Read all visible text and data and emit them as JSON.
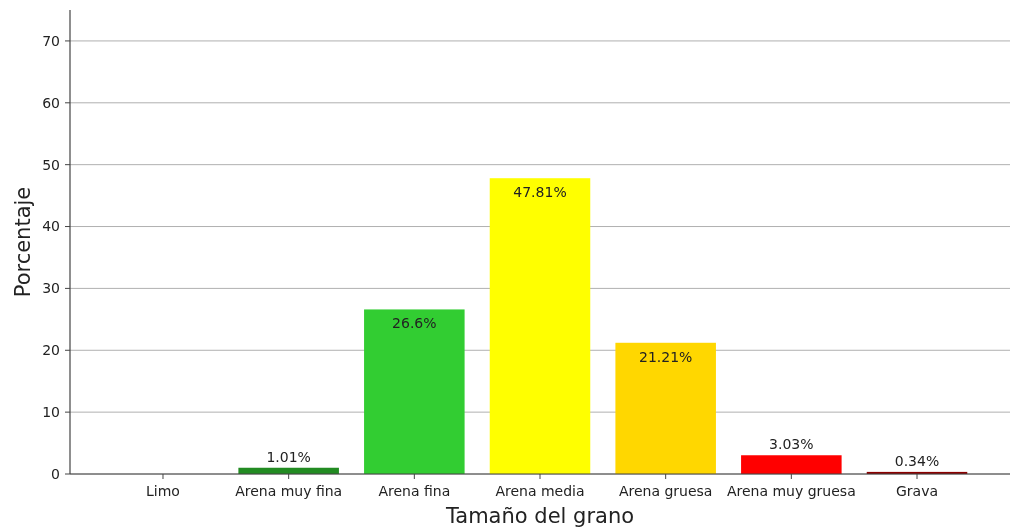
{
  "chart_data": {
    "type": "bar",
    "xlabel": "Tamaño del grano",
    "ylabel": "Porcentaje",
    "categories": [
      "Limo",
      "Arena muy fina",
      "Arena fina",
      "Arena media",
      "Arena gruesa",
      "Arena muy gruesa",
      "Grava"
    ],
    "values": [
      0,
      1.01,
      26.6,
      47.81,
      21.21,
      3.03,
      0.34
    ],
    "colors": [
      "#6a5acd",
      "#228b22",
      "#32cd32",
      "#ffff00",
      "#ffd700",
      "#ff0000",
      "#8b0000"
    ],
    "value_labels": [
      null,
      "1.01%",
      "26.6%",
      "47.81%",
      "21.21%",
      "3.03%",
      "0.34%"
    ],
    "ylim": [
      0,
      75
    ],
    "yticks": [
      0,
      10,
      20,
      30,
      40,
      50,
      60,
      70
    ],
    "grid": "y"
  }
}
